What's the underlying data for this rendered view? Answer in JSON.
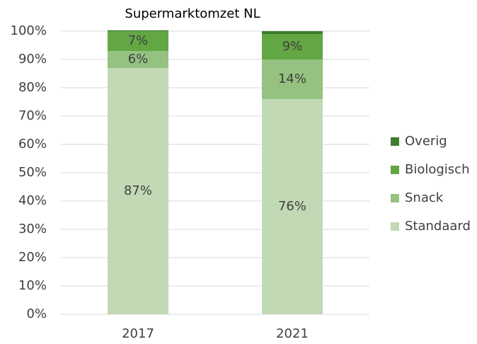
{
  "chart_data": {
    "type": "stacked_bar",
    "title": "Supermarktomzet NL",
    "categories": [
      "2017",
      "2021"
    ],
    "series": [
      {
        "name": "Standaard",
        "color": "#c1d9b5",
        "values": [
          87,
          76
        ],
        "value_labels": [
          "87%",
          "76%"
        ]
      },
      {
        "name": "Snack",
        "color": "#95c281",
        "values": [
          6,
          14
        ],
        "value_labels": [
          "6%",
          "14%"
        ]
      },
      {
        "name": "Biologisch",
        "color": "#62a744",
        "values": [
          7,
          9
        ],
        "value_labels": [
          "7%",
          "9%"
        ]
      },
      {
        "name": "Overig",
        "color": "#3f7b2f",
        "values": [
          0.3,
          1
        ]
      }
    ],
    "ylim": [
      0,
      100
    ],
    "yticks": [
      {
        "value": 0,
        "label": "0%"
      },
      {
        "value": 10,
        "label": "10%"
      },
      {
        "value": 20,
        "label": "20%"
      },
      {
        "value": 30,
        "label": "30%"
      },
      {
        "value": 40,
        "label": "40%"
      },
      {
        "value": 50,
        "label": "50%"
      },
      {
        "value": 60,
        "label": "60%"
      },
      {
        "value": 70,
        "label": "70%"
      },
      {
        "value": 80,
        "label": "80%"
      },
      {
        "value": 90,
        "label": "90%"
      },
      {
        "value": 100,
        "label": "100%"
      }
    ],
    "grid": true,
    "legend": "right"
  }
}
